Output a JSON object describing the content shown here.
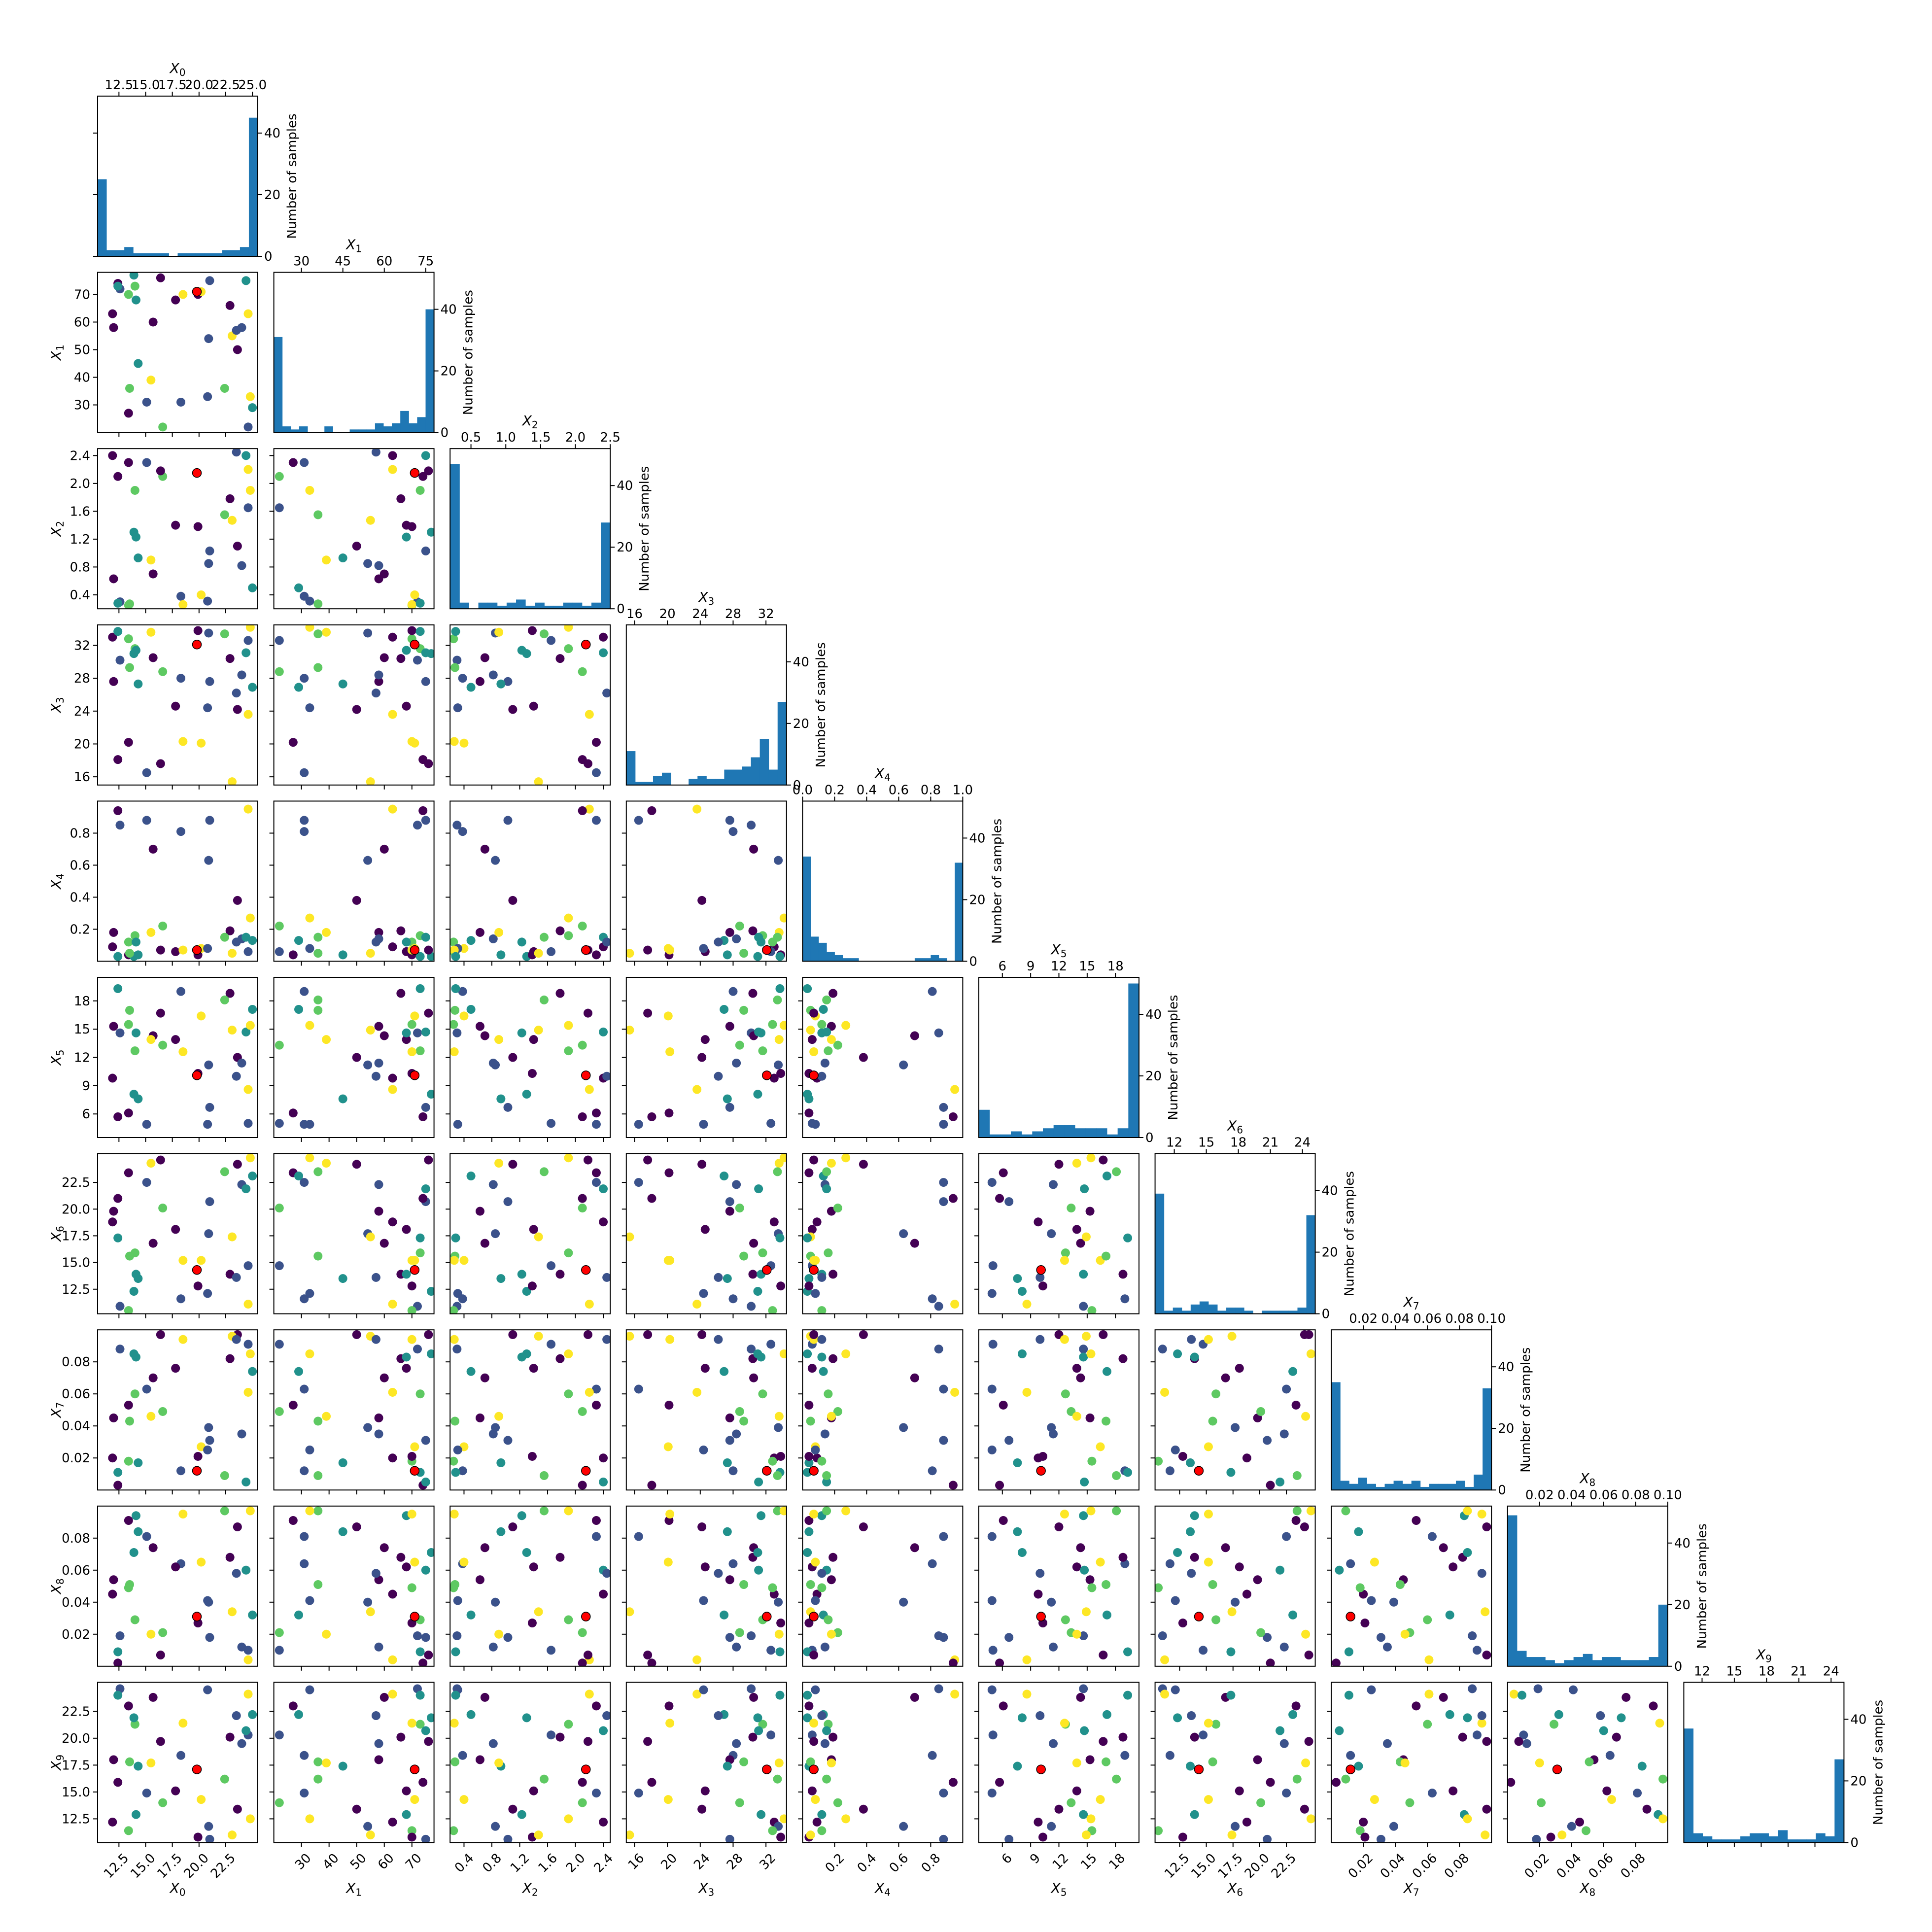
{
  "chart_data": {
    "type": "scatter",
    "title": "",
    "layout": "lower-triangular pair plot (corner plot): histograms on the diagonal, pairwise scatter plots below",
    "diagonal_ylabel": "Number of samples",
    "hist_yticks": [
      "0",
      "20",
      "40"
    ],
    "hist_ylim": [
      0,
      52
    ],
    "colors": {
      "hist_bar": "#1f77b4",
      "best_point": "#ff0000",
      "point_cmap": [
        "#440154",
        "#3b528b",
        "#21918c",
        "#5ec962",
        "#fde725"
      ]
    },
    "variables": [
      {
        "label": "X_0",
        "sub": "0",
        "lim": [
          10.5,
          25.5
        ],
        "ticks": [
          12.5,
          15.0,
          17.5,
          20.0,
          22.5,
          25.0
        ],
        "top_ticklabels": [
          "12.5",
          "15.0",
          "17.5",
          "20.0",
          "22.5",
          "25.0"
        ],
        "left_ticks": [],
        "left_ticklabels": [],
        "bottom_ticks": [
          12.5,
          15.0,
          17.5,
          20.0,
          22.5
        ],
        "bottom_ticklabels": [
          "12.5",
          "15.0",
          "17.5",
          "20.0",
          "22.5"
        ],
        "hist": [
          25,
          2,
          2,
          3,
          1,
          1,
          1,
          1,
          0,
          1,
          1,
          1,
          1,
          1,
          2,
          2,
          3,
          45
        ]
      },
      {
        "label": "X_1",
        "sub": "1",
        "lim": [
          20,
          78
        ],
        "ticks": [
          30,
          45,
          60,
          75
        ],
        "top_ticklabels": [
          "30",
          "45",
          "60",
          "75"
        ],
        "left_ticks": [
          30,
          40,
          50,
          60,
          70
        ],
        "left_ticklabels": [
          "30",
          "40",
          "50",
          "60",
          "70"
        ],
        "bottom_ticks": [
          30,
          40,
          50,
          60,
          70
        ],
        "bottom_ticklabels": [
          "30",
          "40",
          "50",
          "60",
          "70"
        ],
        "hist": [
          31,
          2,
          1,
          2,
          0,
          0,
          2,
          0,
          0,
          1,
          1,
          1,
          3,
          2,
          3,
          7,
          3,
          5,
          40
        ]
      },
      {
        "label": "X_2",
        "sub": "2",
        "lim": [
          0.2,
          2.5
        ],
        "ticks": [
          0.5,
          1.0,
          1.5,
          2.0,
          2.5
        ],
        "top_ticklabels": [
          "0.5",
          "1.0",
          "1.5",
          "2.0",
          "2.5"
        ],
        "left_ticks": [
          0.4,
          0.8,
          1.2,
          1.6,
          2.0,
          2.4
        ],
        "left_ticklabels": [
          "0.4",
          "0.8",
          "1.2",
          "1.6",
          "2.0",
          "2.4"
        ],
        "bottom_ticks": [
          0.4,
          0.8,
          1.2,
          1.6,
          2.0,
          2.4
        ],
        "bottom_ticklabels": [
          "0.4",
          "0.8",
          "1.2",
          "1.6",
          "2.0",
          "2.4"
        ],
        "hist": [
          47,
          2,
          0,
          2,
          2,
          1,
          2,
          3,
          1,
          2,
          1,
          1,
          2,
          2,
          1,
          2,
          28
        ]
      },
      {
        "label": "X_3",
        "sub": "3",
        "lim": [
          15,
          34.5
        ],
        "ticks": [
          16,
          20,
          24,
          28,
          32
        ],
        "top_ticklabels": [
          "16",
          "20",
          "24",
          "28",
          "32"
        ],
        "left_ticks": [
          16,
          20,
          24,
          28,
          32
        ],
        "left_ticklabels": [
          "16",
          "20",
          "24",
          "28",
          "32"
        ],
        "bottom_ticks": [
          16,
          20,
          24,
          28,
          32
        ],
        "bottom_ticklabels": [
          "16",
          "20",
          "24",
          "28",
          "32"
        ],
        "hist": [
          11,
          1,
          1,
          3,
          4,
          0,
          0,
          2,
          3,
          2,
          2,
          5,
          5,
          6,
          9,
          15,
          5,
          27
        ]
      },
      {
        "label": "X_4",
        "sub": "4",
        "lim": [
          0.0,
          1.0
        ],
        "ticks": [
          0.0,
          0.2,
          0.4,
          0.6,
          0.8,
          1.0
        ],
        "top_ticklabels": [
          "0.0",
          "0.2",
          "0.4",
          "0.6",
          "0.8",
          "1.0"
        ],
        "left_ticks": [
          0.2,
          0.4,
          0.6,
          0.8
        ],
        "left_ticklabels": [
          "0.2",
          "0.4",
          "0.6",
          "0.8"
        ],
        "bottom_ticks": [
          0.2,
          0.4,
          0.6,
          0.8
        ],
        "bottom_ticklabels": [
          "0.2",
          "0.4",
          "0.6",
          "0.8"
        ],
        "hist": [
          34,
          8,
          6,
          3,
          2,
          1,
          1,
          0,
          0,
          0,
          0,
          0,
          0,
          0,
          1,
          1,
          2,
          1,
          0,
          32
        ]
      },
      {
        "label": "X_5",
        "sub": "5",
        "lim": [
          3.5,
          20.5
        ],
        "ticks": [
          6,
          9,
          12,
          15,
          18
        ],
        "top_ticklabels": [
          "6",
          "9",
          "12",
          "15",
          "18"
        ],
        "left_ticks": [
          6,
          9,
          12,
          15,
          18
        ],
        "left_ticklabels": [
          "6",
          "9",
          "12",
          "15",
          "18"
        ],
        "bottom_ticks": [
          6,
          9,
          12,
          15,
          18
        ],
        "bottom_ticklabels": [
          "6",
          "9",
          "12",
          "15",
          "18"
        ],
        "hist": [
          9,
          1,
          1,
          2,
          1,
          2,
          3,
          4,
          4,
          3,
          3,
          3,
          1,
          3,
          50
        ]
      },
      {
        "label": "X_6",
        "sub": "6",
        "lim": [
          10.2,
          25.2
        ],
        "ticks": [
          12,
          15,
          18,
          21,
          24
        ],
        "top_ticklabels": [
          "12",
          "15",
          "18",
          "21",
          "24"
        ],
        "left_ticks": [
          12.5,
          15.0,
          17.5,
          20.0,
          22.5
        ],
        "left_ticklabels": [
          "12.5",
          "15.0",
          "17.5",
          "20.0",
          "22.5"
        ],
        "bottom_ticks": [
          12.5,
          15.0,
          17.5,
          20.0,
          22.5
        ],
        "bottom_ticklabels": [
          "12.5",
          "15.0",
          "17.5",
          "20.0",
          "22.5"
        ],
        "hist": [
          39,
          1,
          2,
          1,
          3,
          4,
          3,
          1,
          2,
          2,
          1,
          0,
          1,
          1,
          1,
          1,
          2,
          32
        ]
      },
      {
        "label": "X_7",
        "sub": "7",
        "lim": [
          0.0,
          0.1
        ],
        "ticks": [
          0.02,
          0.04,
          0.06,
          0.08,
          0.1
        ],
        "top_ticklabels": [
          "0.02",
          "0.04",
          "0.06",
          "0.08",
          "0.10"
        ],
        "left_ticks": [
          0.02,
          0.04,
          0.06,
          0.08
        ],
        "left_ticklabels": [
          "0.02",
          "0.04",
          "0.06",
          "0.08"
        ],
        "bottom_ticks": [
          0.02,
          0.04,
          0.06,
          0.08
        ],
        "bottom_ticklabels": [
          "0.02",
          "0.04",
          "0.06",
          "0.08"
        ],
        "hist": [
          35,
          3,
          2,
          4,
          2,
          1,
          2,
          3,
          2,
          3,
          1,
          2,
          2,
          2,
          3,
          1,
          5,
          33
        ]
      },
      {
        "label": "X_8",
        "sub": "8",
        "lim": [
          0.0,
          0.1
        ],
        "ticks": [
          0.02,
          0.04,
          0.06,
          0.08,
          0.1
        ],
        "top_ticklabels": [
          "0.02",
          "0.04",
          "0.06",
          "0.08",
          "0.10"
        ],
        "left_ticks": [
          0.02,
          0.04,
          0.06,
          0.08
        ],
        "left_ticklabels": [
          "0.02",
          "0.04",
          "0.06",
          "0.08"
        ],
        "bottom_ticks": [
          0.02,
          0.04,
          0.06,
          0.08
        ],
        "bottom_ticklabels": [
          "0.02",
          "0.04",
          "0.06",
          "0.08"
        ],
        "hist": [
          49,
          5,
          3,
          3,
          2,
          1,
          2,
          3,
          4,
          2,
          3,
          3,
          2,
          2,
          2,
          3,
          20
        ]
      },
      {
        "label": "X_9",
        "sub": "9",
        "lim": [
          10.3,
          25.2
        ],
        "ticks": [
          12,
          15,
          18,
          21,
          24
        ],
        "top_ticklabels": [
          "12",
          "15",
          "18",
          "21",
          "24"
        ],
        "left_ticks": [
          12.5,
          15.0,
          17.5,
          20.0,
          22.5
        ],
        "left_ticklabels": [
          "12.5",
          "15.0",
          "17.5",
          "20.0",
          "22.5"
        ],
        "bottom_ticks": [
          12.5,
          15.0,
          17.5,
          20.0,
          22.5
        ],
        "bottom_ticklabels": [
          "12.5",
          "15.0",
          "17.5",
          "20.0",
          "22.5"
        ],
        "hist": [
          37,
          3,
          2,
          1,
          1,
          1,
          2,
          3,
          3,
          2,
          4,
          1,
          1,
          1,
          3,
          2,
          27
        ]
      }
    ],
    "best_point": [
      19.8,
      71,
      2.15,
      32.1,
      0.07,
      10.1,
      14.3,
      0.012,
      0.031,
      17.1
    ],
    "samples": [
      [
        11.9,
        63,
        2.4,
        33.0,
        0.09,
        9.8,
        18.8,
        0.02,
        0.045,
        12.2
      ],
      [
        13.4,
        27,
        2.3,
        20.2,
        0.04,
        6.1,
        23.4,
        0.053,
        0.091,
        23.0
      ],
      [
        12.6,
        72,
        0.3,
        30.2,
        0.85,
        14.6,
        10.9,
        0.088,
        0.019,
        24.6
      ],
      [
        15.7,
        60,
        0.7,
        30.5,
        0.7,
        14.3,
        16.8,
        0.07,
        0.074,
        23.8
      ],
      [
        18.3,
        31,
        0.38,
        28.0,
        0.81,
        19.0,
        11.6,
        0.012,
        0.064,
        18.4
      ],
      [
        17.8,
        68,
        1.4,
        24.6,
        0.06,
        13.9,
        18.1,
        0.076,
        0.062,
        15.1
      ],
      [
        21.0,
        75,
        1.03,
        27.6,
        0.88,
        6.7,
        20.7,
        0.031,
        0.018,
        10.6
      ],
      [
        23.6,
        50,
        1.1,
        24.2,
        0.38,
        12.0,
        24.2,
        0.097,
        0.087,
        13.4
      ],
      [
        24.6,
        22,
        1.65,
        32.6,
        0.06,
        5.0,
        14.7,
        0.091,
        0.01,
        20.3
      ],
      [
        25.0,
        29,
        0.5,
        26.9,
        0.13,
        17.1,
        23.1,
        0.074,
        0.032,
        22.2
      ],
      [
        12.0,
        58,
        0.63,
        27.6,
        0.18,
        15.3,
        19.8,
        0.045,
        0.054,
        18.0
      ],
      [
        14.0,
        73,
        1.9,
        31.6,
        0.16,
        12.7,
        15.9,
        0.06,
        0.029,
        21.3
      ],
      [
        20.9,
        54,
        0.85,
        33.5,
        0.63,
        11.2,
        17.7,
        0.039,
        0.04,
        11.8
      ],
      [
        14.3,
        45,
        0.93,
        27.3,
        0.04,
        7.6,
        13.5,
        0.017,
        0.084,
        17.4
      ],
      [
        15.1,
        31,
        2.3,
        16.5,
        0.88,
        4.9,
        22.5,
        0.063,
        0.081,
        14.9
      ],
      [
        22.9,
        66,
        1.78,
        30.4,
        0.19,
        18.8,
        13.9,
        0.082,
        0.068,
        20.1
      ],
      [
        13.9,
        77,
        1.3,
        31.0,
        0.03,
        8.1,
        12.3,
        0.085,
        0.071,
        21.9
      ],
      [
        24.0,
        58,
        0.82,
        28.4,
        0.14,
        11.4,
        22.3,
        0.035,
        0.012,
        19.5
      ],
      [
        13.4,
        70,
        0.25,
        32.8,
        0.12,
        15.5,
        10.5,
        0.018,
        0.049,
        11.4
      ],
      [
        16.6,
        22,
        2.1,
        28.8,
        0.22,
        13.3,
        20.1,
        0.049,
        0.021,
        14.0
      ],
      [
        19.9,
        70,
        1.38,
        33.8,
        0.04,
        10.3,
        12.8,
        0.021,
        0.027,
        10.8
      ],
      [
        24.6,
        63,
        2.2,
        23.6,
        0.95,
        8.6,
        11.1,
        0.061,
        0.004,
        24.1
      ],
      [
        14.1,
        68,
        1.23,
        31.4,
        0.12,
        14.6,
        13.9,
        0.083,
        0.094,
        12.9
      ],
      [
        20.2,
        71,
        0.4,
        20.1,
        0.08,
        16.4,
        15.2,
        0.027,
        0.065,
        14.3
      ],
      [
        13.5,
        36,
        0.27,
        29.3,
        0.05,
        17.0,
        15.6,
        0.043,
        0.051,
        17.8
      ],
      [
        15.5,
        39,
        0.9,
        33.6,
        0.18,
        13.9,
        24.3,
        0.046,
        0.02,
        17.7
      ],
      [
        12.4,
        74,
        2.1,
        18.1,
        0.94,
        5.7,
        21.0,
        0.003,
        0.002,
        15.9
      ],
      [
        24.4,
        75,
        2.4,
        31.1,
        0.15,
        14.7,
        21.9,
        0.005,
        0.06,
        20.7
      ],
      [
        20.8,
        33,
        0.31,
        24.4,
        0.08,
        4.9,
        12.1,
        0.025,
        0.041,
        24.5
      ],
      [
        18.5,
        70,
        0.26,
        20.3,
        0.07,
        12.6,
        15.2,
        0.094,
        0.095,
        21.4
      ],
      [
        23.1,
        55,
        1.47,
        15.4,
        0.05,
        14.9,
        17.4,
        0.096,
        0.034,
        11.0
      ],
      [
        23.5,
        57,
        2.45,
        26.2,
        0.12,
        10.0,
        13.6,
        0.094,
        0.058,
        22.1
      ],
      [
        12.4,
        73,
        0.28,
        33.7,
        0.03,
        19.3,
        17.3,
        0.011,
        0.009,
        24.0
      ],
      [
        22.4,
        36,
        1.55,
        33.4,
        0.15,
        18.1,
        23.5,
        0.009,
        0.097,
        16.2
      ],
      [
        24.8,
        33,
        1.9,
        34.2,
        0.27,
        15.4,
        24.8,
        0.085,
        0.097,
        12.5
      ],
      [
        16.4,
        76,
        2.18,
        17.6,
        0.07,
        16.7,
        24.6,
        0.097,
        0.007,
        19.7
      ]
    ],
    "sample_colors": [
      0,
      0,
      1,
      0,
      1,
      0,
      1,
      0,
      1,
      2,
      0,
      3,
      1,
      2,
      1,
      0,
      2,
      1,
      3,
      3,
      0,
      4,
      2,
      4,
      3,
      4,
      0,
      2,
      1,
      4,
      4,
      1,
      2,
      3,
      4,
      0
    ]
  }
}
